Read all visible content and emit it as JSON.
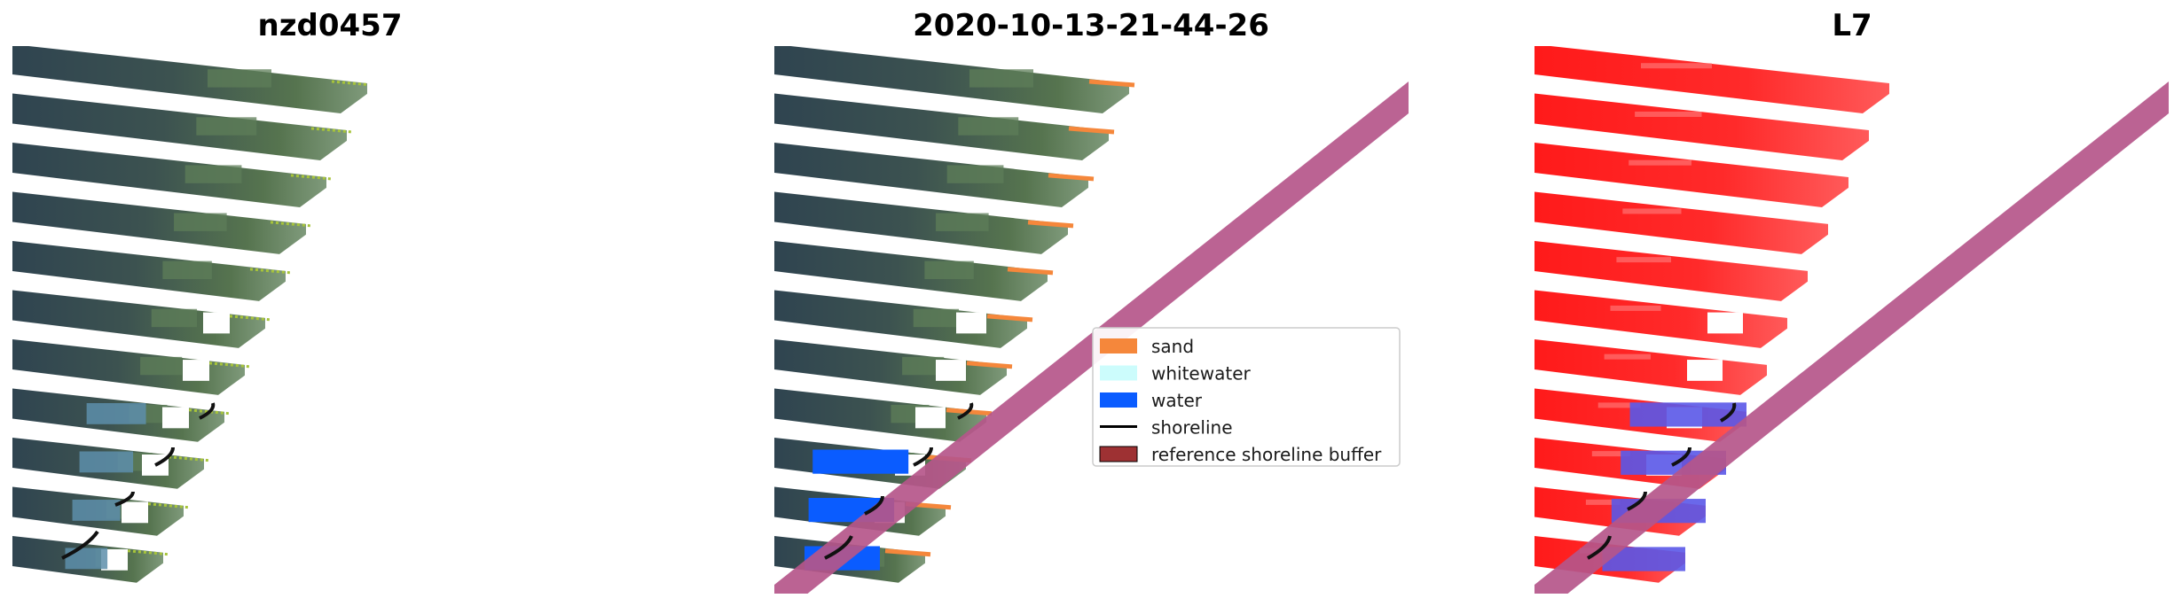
{
  "panels": [
    {
      "title": "nzd0457"
    },
    {
      "title": "2020-10-13-21-44-26"
    },
    {
      "title": "L7"
    }
  ],
  "legend": {
    "items": [
      {
        "label": "sand",
        "color": "#f5873b",
        "kind": "patch"
      },
      {
        "label": "whitewater",
        "color": "#ccfcfc",
        "kind": "patch"
      },
      {
        "label": "water",
        "color": "#0a5cff",
        "kind": "patch"
      },
      {
        "label": "shoreline",
        "color": "#000000",
        "kind": "line"
      },
      {
        "label": "reference shoreline buffer",
        "color": "#9e3133",
        "kind": "patch"
      }
    ]
  },
  "colors": {
    "imagery_dark": "#3a4a52",
    "imagery_green": "#4f6f4e",
    "imagery_light": "#8fa4a0",
    "buffer": "#b5568a",
    "index_red": "#ff1f1f",
    "index_blue": "#5a58e8",
    "sand": "#f5873b",
    "water": "#0a5cff"
  }
}
